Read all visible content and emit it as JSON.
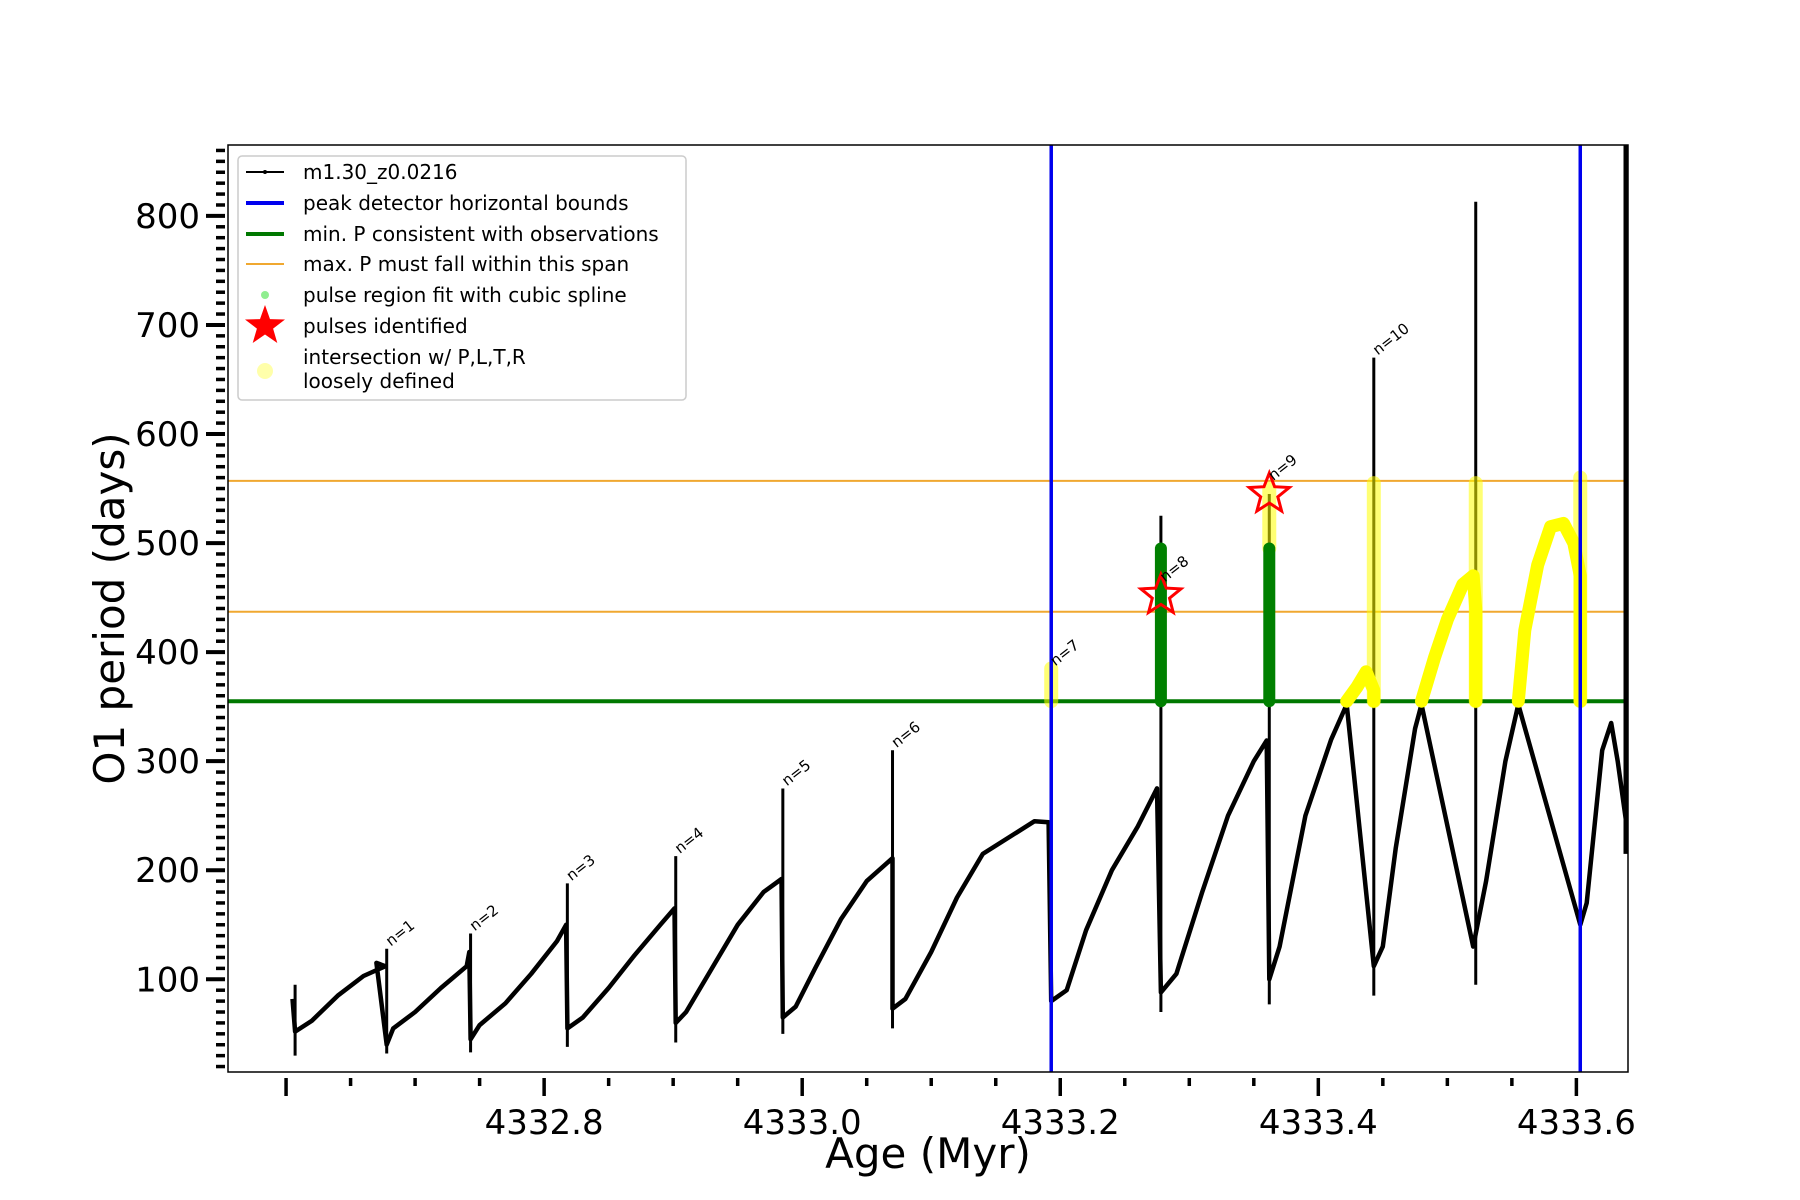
{
  "chart_data": {
    "type": "line",
    "xlabel": "Age (Myr)",
    "ylabel": "O1 period (days)",
    "xlim": [
      4332.555,
      4333.64
    ],
    "ylim": [
      15,
      865
    ],
    "x_ticks": [
      "4332.8",
      "4333.0",
      "4333.2",
      "4333.4",
      "4333.6"
    ],
    "x_tick_values": [
      4332.8,
      4333.0,
      4333.2,
      4333.4,
      4333.6
    ],
    "y_ticks": [
      "100",
      "200",
      "300",
      "400",
      "500",
      "600",
      "700",
      "800"
    ],
    "y_tick_values": [
      100,
      200,
      300,
      400,
      500,
      600,
      700,
      800
    ],
    "grid": false,
    "legend_position": "upper-left",
    "colors": {
      "model": "#000000",
      "bounds": "#0000ee",
      "min_p": "#007800",
      "max_p": "#f0a830",
      "spline": "#90ee90",
      "spline_fill": "#008000",
      "pulses": "#ff0000",
      "intersection": "#ffff00"
    },
    "legend": [
      {
        "label": "m1.30_z0.0216",
        "kind": "dotline",
        "color": "#000000"
      },
      {
        "label": "peak detector horizontal bounds",
        "kind": "line",
        "color": "#0000ee"
      },
      {
        "label": "min. P consistent with observations",
        "kind": "line",
        "color": "#007800"
      },
      {
        "label": "max. P must fall within this span",
        "kind": "thinline",
        "color": "#f0a830"
      },
      {
        "label": "pulse region fit with cubic spline",
        "kind": "dot",
        "color": "#90ee90"
      },
      {
        "label": "pulses identified",
        "kind": "star",
        "color": "#ff0000"
      },
      {
        "label": "intersection w/ P,L,T,R",
        "label2": "loosely defined",
        "kind": "bigdot",
        "color": "#ffffaa"
      }
    ],
    "vlines": [
      4333.193,
      4333.603
    ],
    "min_p": 355,
    "max_p_span": [
      437,
      557
    ],
    "series": [
      {
        "name": "m1.30_z0.0216",
        "points": [
          [
            4332.605,
            82
          ],
          [
            4332.607,
            52
          ],
          [
            4332.62,
            62
          ],
          [
            4332.64,
            85
          ],
          [
            4332.66,
            103
          ],
          [
            4332.677,
            112
          ],
          [
            4332.67,
            115
          ],
          [
            4332.678,
            40
          ],
          [
            4332.683,
            55
          ],
          [
            4332.7,
            70
          ],
          [
            4332.72,
            92
          ],
          [
            4332.74,
            112
          ],
          [
            4332.742,
            125
          ],
          [
            4332.743,
            45
          ],
          [
            4332.75,
            58
          ],
          [
            4332.77,
            78
          ],
          [
            4332.79,
            105
          ],
          [
            4332.81,
            135
          ],
          [
            4332.817,
            150
          ],
          [
            4332.818,
            55
          ],
          [
            4332.83,
            65
          ],
          [
            4332.85,
            92
          ],
          [
            4332.87,
            122
          ],
          [
            4332.89,
            150
          ],
          [
            4332.901,
            165
          ],
          [
            4332.902,
            60
          ],
          [
            4332.91,
            70
          ],
          [
            4332.93,
            110
          ],
          [
            4332.95,
            150
          ],
          [
            4332.97,
            180
          ],
          [
            4332.984,
            192
          ],
          [
            4332.985,
            65
          ],
          [
            4332.995,
            75
          ],
          [
            4333.01,
            110
          ],
          [
            4333.03,
            155
          ],
          [
            4333.05,
            190
          ],
          [
            4333.07,
            211
          ],
          [
            4333.07,
            73
          ],
          [
            4333.08,
            82
          ],
          [
            4333.1,
            125
          ],
          [
            4333.12,
            175
          ],
          [
            4333.14,
            215
          ],
          [
            4333.18,
            245
          ],
          [
            4333.191,
            244
          ],
          [
            4333.193,
            80
          ],
          [
            4333.205,
            90
          ],
          [
            4333.22,
            145
          ],
          [
            4333.24,
            200
          ],
          [
            4333.26,
            240
          ],
          [
            4333.275,
            275
          ],
          [
            4333.278,
            88
          ],
          [
            4333.29,
            105
          ],
          [
            4333.31,
            180
          ],
          [
            4333.33,
            250
          ],
          [
            4333.35,
            300
          ],
          [
            4333.36,
            319
          ],
          [
            4333.362,
            100
          ],
          [
            4333.37,
            130
          ],
          [
            4333.39,
            250
          ],
          [
            4333.41,
            320
          ],
          [
            4333.422,
            352
          ],
          [
            4333.443,
            112
          ],
          [
            4333.45,
            130
          ],
          [
            4333.46,
            220
          ],
          [
            4333.475,
            330
          ],
          [
            4333.48,
            352
          ],
          [
            4333.52,
            130
          ],
          [
            4333.53,
            190
          ],
          [
            4333.545,
            300
          ],
          [
            4333.555,
            352
          ],
          [
            4333.603,
            150
          ],
          [
            4333.608,
            170
          ],
          [
            4333.62,
            310
          ],
          [
            4333.627,
            335
          ],
          [
            4333.632,
            300
          ],
          [
            4333.642,
            215
          ]
        ]
      }
    ],
    "spikes": [
      {
        "x": 4332.607,
        "y_min": 30,
        "y_max": 95
      },
      {
        "x": 4332.678,
        "y_min": 32,
        "y_max": 128
      },
      {
        "x": 4332.743,
        "y_min": 33,
        "y_max": 142
      },
      {
        "x": 4332.818,
        "y_min": 38,
        "y_max": 188
      },
      {
        "x": 4332.902,
        "y_min": 42,
        "y_max": 213
      },
      {
        "x": 4332.985,
        "y_min": 50,
        "y_max": 275
      },
      {
        "x": 4333.07,
        "y_min": 55,
        "y_max": 310
      },
      {
        "x": 4333.193,
        "y_min": 60,
        "y_max": 385
      },
      {
        "x": 4333.278,
        "y_min": 70,
        "y_max": 525
      },
      {
        "x": 4333.362,
        "y_min": 77,
        "y_max": 545
      },
      {
        "x": 4333.443,
        "y_min": 85,
        "y_max": 670
      },
      {
        "x": 4333.522,
        "y_min": 95,
        "y_max": 813
      },
      {
        "x": 4333.603,
        "y_min": 97,
        "y_max": 683
      },
      {
        "x": 4333.64,
        "y_min": 215,
        "y_max": 865
      }
    ],
    "spline_regions": [
      {
        "x": 4333.278,
        "y_min": 355,
        "y_max": 495
      },
      {
        "x": 4333.362,
        "y_min": 355,
        "y_max": 495
      }
    ],
    "intersection_regions": [
      {
        "x": 4333.193,
        "y_min": 355,
        "y_max": 385
      },
      {
        "x": 4333.362,
        "y_min": 495,
        "y_max": 550
      },
      {
        "x": 4333.443,
        "y_min": 355,
        "y_max": 555
      },
      {
        "x": 4333.522,
        "y_min": 355,
        "y_max": 555
      },
      {
        "x": 4333.603,
        "y_min": 355,
        "y_max": 560
      }
    ],
    "intersection_arcs": [
      [
        [
          4333.422,
          355
        ],
        [
          4333.43,
          368
        ],
        [
          4333.437,
          382
        ],
        [
          4333.443,
          365
        ],
        [
          4333.443,
          355
        ]
      ],
      [
        [
          4333.48,
          355
        ],
        [
          4333.49,
          395
        ],
        [
          4333.5,
          430
        ],
        [
          4333.512,
          462
        ],
        [
          4333.52,
          470
        ],
        [
          4333.522,
          440
        ],
        [
          4333.522,
          355
        ]
      ],
      [
        [
          4333.555,
          355
        ],
        [
          4333.56,
          420
        ],
        [
          4333.57,
          480
        ],
        [
          4333.58,
          515
        ],
        [
          4333.59,
          518
        ],
        [
          4333.598,
          500
        ],
        [
          4333.603,
          470
        ],
        [
          4333.603,
          355
        ]
      ]
    ],
    "pulses": [
      {
        "x": 4333.278,
        "y": 452
      },
      {
        "x": 4333.362,
        "y": 545
      }
    ],
    "annotations": [
      {
        "text": "n=1",
        "x": 4332.678,
        "y": 128
      },
      {
        "text": "n=2",
        "x": 4332.743,
        "y": 142
      },
      {
        "text": "n=3",
        "x": 4332.818,
        "y": 188
      },
      {
        "text": "n=4",
        "x": 4332.902,
        "y": 213
      },
      {
        "text": "n=5",
        "x": 4332.985,
        "y": 275
      },
      {
        "text": "n=6",
        "x": 4333.07,
        "y": 310
      },
      {
        "text": "n=7",
        "x": 4333.193,
        "y": 385
      },
      {
        "text": "n=8",
        "x": 4333.278,
        "y": 462
      },
      {
        "text": "n=9",
        "x": 4333.362,
        "y": 555
      },
      {
        "text": "n=10",
        "x": 4333.443,
        "y": 670
      }
    ]
  }
}
